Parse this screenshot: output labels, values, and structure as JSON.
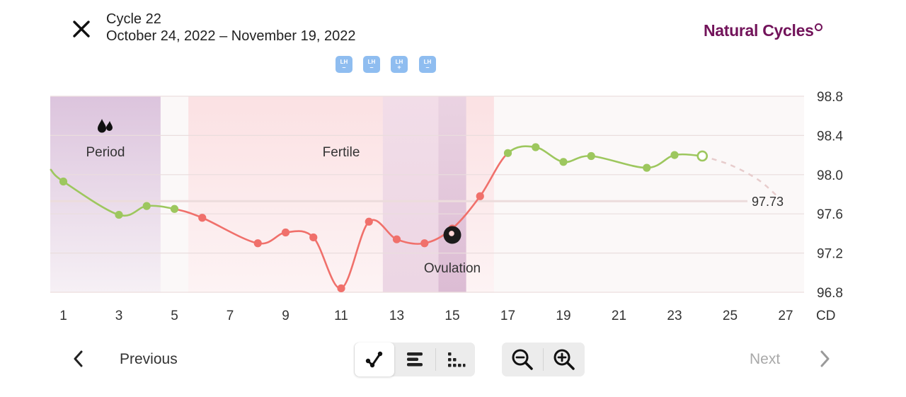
{
  "header": {
    "cycle_title": "Cycle 22",
    "date_range": "October 24, 2022 – November 19, 2022",
    "brand": "Natural Cycles",
    "close_icon": "close-icon"
  },
  "lh_tests": [
    {
      "day": 11,
      "label": "LH",
      "sign": "–"
    },
    {
      "day": 12,
      "label": "LH",
      "sign": "–"
    },
    {
      "day": 13,
      "label": "LH",
      "sign": "+"
    },
    {
      "day": 14,
      "label": "LH",
      "sign": "–"
    }
  ],
  "chart_data": {
    "type": "line",
    "xlabel": "CD",
    "x_ticks": [
      1,
      3,
      5,
      7,
      9,
      11,
      13,
      15,
      17,
      19,
      21,
      23,
      25,
      27
    ],
    "y_ticks": [
      "98.8",
      "98.4",
      "98.0",
      "97.6",
      "97.2",
      "96.8"
    ],
    "ylim": [
      96.8,
      98.8
    ],
    "xlim": [
      0.55,
      27.0
    ],
    "coverline": {
      "value": 97.73,
      "label": "97.73"
    },
    "phases": [
      {
        "name": "period",
        "label": "Period",
        "start_day": 0.5,
        "end_day": 4.5
      },
      {
        "name": "fertile",
        "label": "Fertile",
        "start_day": 5.5,
        "end_day": 16.5
      },
      {
        "name": "ovulation-window",
        "label": "",
        "start_day": 12.5,
        "end_day": 14.5
      },
      {
        "name": "ovulation",
        "label": "Ovulation",
        "start_day": 14.5,
        "end_day": 15.5
      }
    ],
    "ovulation_day": 15,
    "series": [
      {
        "points": [
          {
            "day": 0.55,
            "temp": 98.05,
            "color": "green",
            "marker": false
          },
          {
            "day": 1,
            "temp": 97.93,
            "color": "green",
            "marker": true
          },
          {
            "day": 3,
            "temp": 97.59,
            "color": "green",
            "marker": true
          },
          {
            "day": 4,
            "temp": 97.68,
            "color": "green",
            "marker": true
          },
          {
            "day": 5,
            "temp": 97.65,
            "color": "green",
            "marker": true
          },
          {
            "day": 6,
            "temp": 97.56,
            "color": "red",
            "marker": true
          },
          {
            "day": 8,
            "temp": 97.3,
            "color": "red",
            "marker": true
          },
          {
            "day": 9,
            "temp": 97.41,
            "color": "red",
            "marker": true
          },
          {
            "day": 10,
            "temp": 97.36,
            "color": "red",
            "marker": true
          },
          {
            "day": 11,
            "temp": 96.84,
            "color": "red",
            "marker": true
          },
          {
            "day": 12,
            "temp": 97.52,
            "color": "red",
            "marker": true
          },
          {
            "day": 13,
            "temp": 97.34,
            "color": "red",
            "marker": true
          },
          {
            "day": 14,
            "temp": 97.3,
            "color": "red",
            "marker": true
          },
          {
            "day": 15,
            "temp": 97.45,
            "color": "red",
            "marker": true
          },
          {
            "day": 16,
            "temp": 97.78,
            "color": "red",
            "marker": true
          },
          {
            "day": 17,
            "temp": 98.22,
            "color": "green",
            "marker": true
          },
          {
            "day": 18,
            "temp": 98.28,
            "color": "green",
            "marker": true
          },
          {
            "day": 19,
            "temp": 98.13,
            "color": "green",
            "marker": true
          },
          {
            "day": 20,
            "temp": 98.19,
            "color": "green",
            "marker": true
          },
          {
            "day": 22,
            "temp": 98.07,
            "color": "green",
            "marker": true
          },
          {
            "day": 23,
            "temp": 98.2,
            "color": "green",
            "marker": true
          },
          {
            "day": 24,
            "temp": 98.19,
            "color": "green",
            "marker": "hollow"
          }
        ],
        "projection": [
          {
            "day": 24,
            "temp": 98.19
          },
          {
            "day": 25,
            "temp": 98.1
          },
          {
            "day": 26,
            "temp": 97.95
          },
          {
            "day": 26.7,
            "temp": 97.78
          }
        ]
      }
    ],
    "colors": {
      "green": "#9dc75e",
      "red": "#f0706b",
      "projection": "#e7cccc",
      "coverline": "#ecdcdc"
    }
  },
  "footer": {
    "previous_label": "Previous",
    "next_label": "Next",
    "view_modes": [
      "graph-view-icon",
      "bars-view-icon",
      "dots-view-icon"
    ],
    "active_view": "graph-view-icon",
    "zoom_out_icon": "zoom-out-icon",
    "zoom_in_icon": "zoom-in-icon"
  }
}
